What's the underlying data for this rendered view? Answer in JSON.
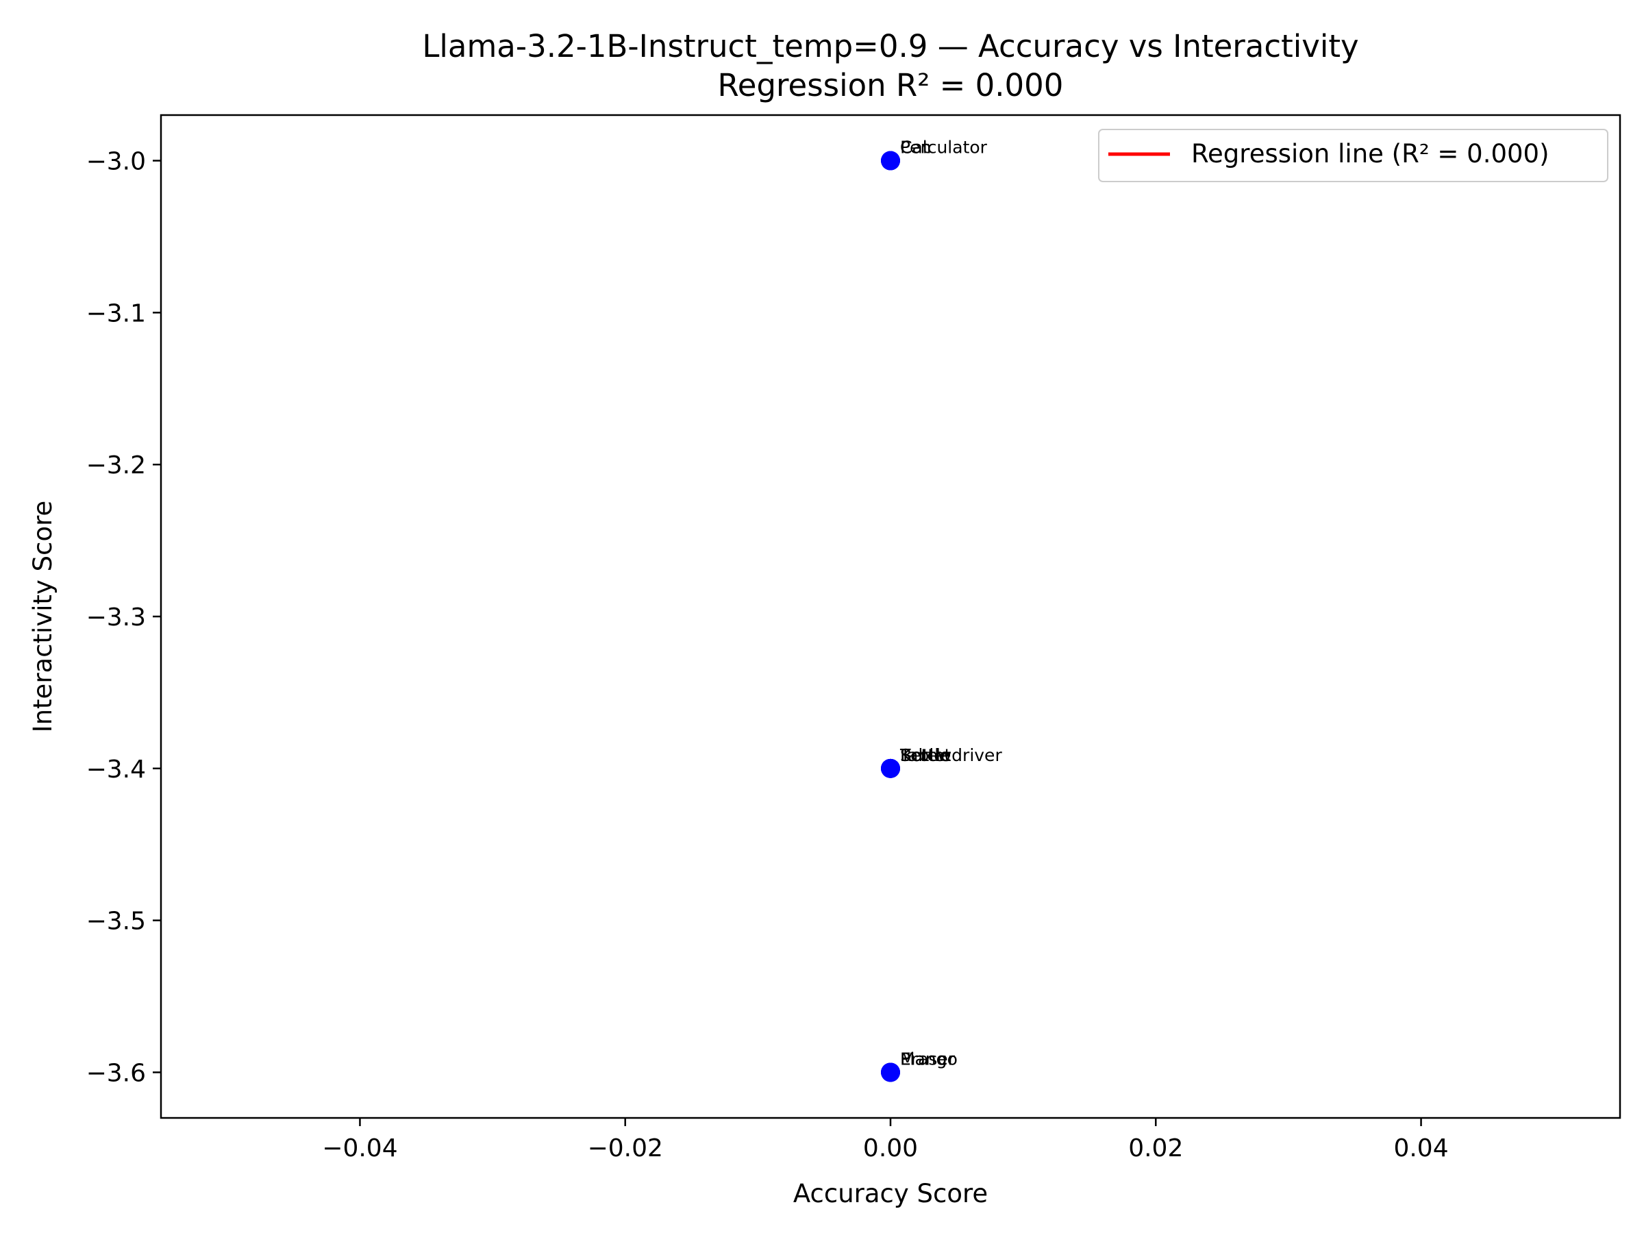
{
  "chart_data": {
    "type": "scatter",
    "title": "Llama-3.2-1B-Instruct_temp=0.9 — Accuracy vs Interactivity",
    "subtitle": "Regression R² = 0.000",
    "xlabel": "Accuracy Score",
    "ylabel": "Interactivity Score",
    "xlim": [
      -0.055,
      0.055
    ],
    "ylim": [
      -3.63,
      -2.97
    ],
    "x_ticks": [
      -0.04,
      -0.02,
      0.0,
      0.02,
      0.04
    ],
    "x_tick_labels": [
      "−0.04",
      "−0.02",
      "0.00",
      "0.02",
      "0.04"
    ],
    "y_ticks": [
      -3.0,
      -3.1,
      -3.2,
      -3.3,
      -3.4,
      -3.5,
      -3.6
    ],
    "y_tick_labels": [
      "−3.0",
      "−3.1",
      "−3.2",
      "−3.3",
      "−3.4",
      "−3.5",
      "−3.6"
    ],
    "grid": false,
    "legend": {
      "position": "top-right",
      "entries": [
        {
          "label": "Regression line (R² = 0.000)",
          "color": "#ff0000"
        }
      ]
    },
    "point_color": "#0000ff",
    "points": [
      {
        "x": 0.0,
        "y": -3.0,
        "label": "Calculator"
      },
      {
        "x": 0.0,
        "y": -3.0,
        "label": "Pen"
      },
      {
        "x": 0.0,
        "y": -3.0,
        "label": "Cat"
      },
      {
        "x": 0.0,
        "y": -3.4,
        "label": "Screwdriver"
      },
      {
        "x": 0.0,
        "y": -3.4,
        "label": "Bottle"
      },
      {
        "x": 0.0,
        "y": -3.4,
        "label": "Kettle"
      },
      {
        "x": 0.0,
        "y": -3.4,
        "label": "Tablet"
      },
      {
        "x": 0.0,
        "y": -3.6,
        "label": "Mango"
      },
      {
        "x": 0.0,
        "y": -3.6,
        "label": "Piano"
      },
      {
        "x": 0.0,
        "y": -3.6,
        "label": "Eraser"
      }
    ]
  }
}
